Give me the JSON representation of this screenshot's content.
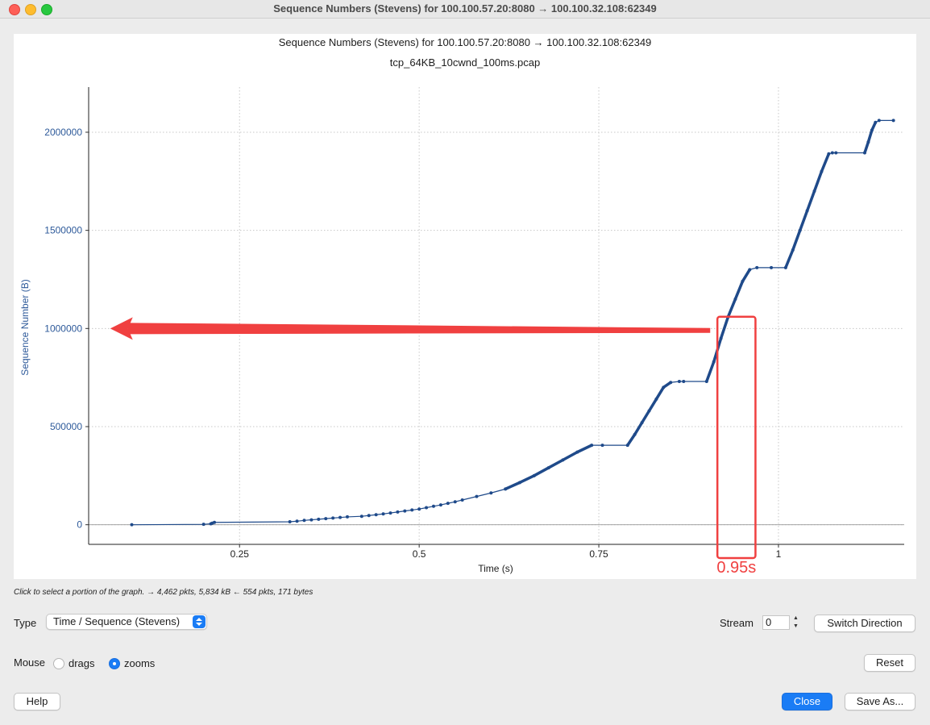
{
  "window": {
    "title": "Sequence Numbers (Stevens) for 100.100.57.20:8080 → 100.100.32.108:62349"
  },
  "chart_data": {
    "type": "scatter",
    "title": "Sequence Numbers (Stevens) for 100.100.57.20:8080 → 100.100.32.108:62349",
    "subtitle": "tcp_64KB_10cwnd_100ms.pcap",
    "xlabel": "Time (s)",
    "ylabel": "Sequence Number (B)",
    "xlim": [
      0.04,
      1.175
    ],
    "ylim": [
      -100000,
      2230000
    ],
    "xticks": [
      0.25,
      0.5,
      0.75,
      1
    ],
    "xtick_labels": [
      "0.25",
      "0.5",
      "0.75",
      "1"
    ],
    "yticks": [
      0,
      500000,
      1000000,
      1500000,
      2000000
    ],
    "ytick_labels": [
      "0",
      "500000",
      "1000000",
      "1500000",
      "2000000"
    ],
    "grid": true,
    "series_color": "#1f4a8a",
    "series": [
      {
        "x": [
          0.1,
          0.2,
          0.21,
          0.212,
          0.215,
          0.32,
          0.33,
          0.34,
          0.35,
          0.36,
          0.37,
          0.38,
          0.39,
          0.4,
          0.42,
          0.43,
          0.44,
          0.45,
          0.46,
          0.47,
          0.48,
          0.49,
          0.5,
          0.51,
          0.52,
          0.53,
          0.54,
          0.55,
          0.56,
          0.58,
          0.6,
          0.62,
          0.64,
          0.66,
          0.68,
          0.7,
          0.72,
          0.74,
          0.755,
          0.79,
          0.8,
          0.81,
          0.82,
          0.83,
          0.84,
          0.85,
          0.862,
          0.868,
          0.9,
          0.91,
          0.92,
          0.93,
          0.94,
          0.95,
          0.96,
          0.97,
          0.99,
          1.01,
          1.02,
          1.03,
          1.04,
          1.05,
          1.06,
          1.07,
          1.075,
          1.08,
          1.12,
          1.125,
          1.13,
          1.135,
          1.14,
          1.16
        ],
        "y": [
          0,
          2000,
          5000,
          8000,
          12000,
          15000,
          18000,
          22000,
          25000,
          28000,
          31000,
          34000,
          37000,
          40000,
          43000,
          47000,
          51000,
          55000,
          60000,
          65000,
          70000,
          75000,
          80000,
          87000,
          94000,
          101000,
          109000,
          117000,
          126000,
          144000,
          162000,
          182000,
          215000,
          250000,
          290000,
          330000,
          370000,
          405000,
          405000,
          405000,
          460000,
          520000,
          580000,
          640000,
          700000,
          725000,
          730000,
          730000,
          730000,
          830000,
          950000,
          1060000,
          1150000,
          1240000,
          1300000,
          1310000,
          1310000,
          1310000,
          1400000,
          1500000,
          1600000,
          1700000,
          1800000,
          1890000,
          1895000,
          1895000,
          1895000,
          1950000,
          2010000,
          2050000,
          2060000,
          2060000
        ]
      }
    ],
    "annotations": [
      {
        "type": "arrow",
        "from": [
          0.905,
          990000
        ],
        "to": [
          0.07,
          1000000
        ],
        "color": "#f04040"
      },
      {
        "type": "rect",
        "x": [
          0.915,
          0.968
        ],
        "y": [
          -170000,
          1060000
        ],
        "color": "#f04040",
        "label": "0.95s"
      }
    ]
  },
  "status": {
    "hint": "Click to select a portion of the graph. → 4,462 pkts, 5,834 kB ← 554 pkts, 171 bytes"
  },
  "controls": {
    "type_label": "Type",
    "type_value": "Time / Sequence (Stevens)",
    "stream_label": "Stream",
    "stream_value": "0",
    "switch_direction": "Switch Direction",
    "mouse_label": "Mouse",
    "mouse_drags": "drags",
    "mouse_zooms": "zooms",
    "reset": "Reset",
    "help": "Help",
    "close": "Close",
    "save_as": "Save As..."
  }
}
